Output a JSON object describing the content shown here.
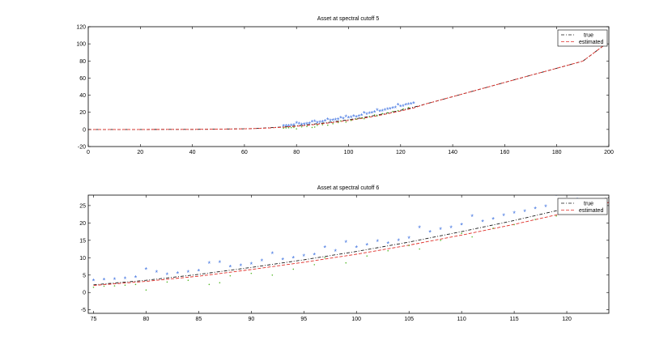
{
  "chart_data": [
    {
      "type": "line",
      "title": "Asset at spectral cutoff 5",
      "xlabel": "",
      "ylabel": "",
      "xlim": [
        0,
        200
      ],
      "ylim": [
        -20,
        120
      ],
      "xticks": [
        0,
        20,
        40,
        60,
        80,
        100,
        120,
        140,
        160,
        180,
        200
      ],
      "yticks": [
        -20,
        0,
        20,
        40,
        60,
        80,
        100,
        120
      ],
      "grid": false,
      "legend_position": "top-right",
      "series": [
        {
          "name": "true",
          "style": "dash-dot",
          "color": "#1a1a1a",
          "x": [
            0,
            20,
            40,
            50,
            60,
            65,
            70,
            75,
            80,
            85,
            90,
            95,
            100,
            105,
            110,
            115,
            120,
            125,
            130,
            140,
            150,
            160,
            170,
            180,
            190,
            198
          ],
          "values": [
            0,
            0,
            0.1,
            0.3,
            0.7,
            1.2,
            2,
            3,
            4.2,
            5.7,
            7.3,
            9.2,
            11.3,
            13.6,
            16.2,
            19.2,
            22.4,
            26,
            30,
            38.3,
            46.6,
            54.9,
            63.2,
            71.5,
            79.8,
            98
          ]
        },
        {
          "name": "estimated",
          "style": "dashed",
          "color": "#e0302a",
          "x": [
            0,
            20,
            40,
            50,
            60,
            65,
            70,
            75,
            80,
            85,
            90,
            95,
            100,
            105,
            110,
            115,
            120,
            125,
            130,
            140,
            150,
            160,
            170,
            180,
            190,
            198
          ],
          "values": [
            0,
            0,
            0.1,
            0.3,
            0.7,
            1.1,
            1.8,
            2.6,
            3.7,
            5.1,
            6.7,
            8.5,
            10.5,
            12.8,
            15.4,
            18.3,
            21.5,
            25,
            30,
            38.3,
            46.6,
            54.9,
            63.2,
            71.5,
            79.8,
            98
          ]
        }
      ],
      "markers": [
        {
          "symbol": "*",
          "color": "#3a6fe0",
          "x": [
            75,
            76,
            77,
            78,
            79,
            80,
            81,
            82,
            83,
            84,
            85,
            86,
            87,
            88,
            89,
            90,
            91,
            92,
            93,
            94,
            95,
            96,
            97,
            98,
            99,
            100,
            101,
            102,
            103,
            104,
            105,
            106,
            107,
            108,
            109,
            110,
            111,
            112,
            113,
            114,
            115,
            116,
            117,
            118,
            119,
            120,
            121,
            122,
            123,
            124,
            125
          ],
          "values": [
            3.3,
            3.5,
            3.6,
            3.8,
            4.2,
            6.5,
            5.7,
            5,
            5.3,
            5.7,
            6,
            8.3,
            8.5,
            7.2,
            7.6,
            8,
            9,
            11,
            9.3,
            9.8,
            10.3,
            10.7,
            12.8,
            11.7,
            14.3,
            12.8,
            13.5,
            14.5,
            14,
            14.8,
            15.5,
            18.5,
            17.2,
            18,
            18.5,
            19.3,
            21.8,
            20.3,
            21,
            22,
            22.7,
            23.2,
            24,
            24.5,
            27.8,
            26,
            26.5,
            28,
            28.5,
            29,
            30
          ]
        },
        {
          "symbol": ".",
          "color": "#55b82a",
          "x": [
            75,
            76,
            77,
            78,
            79,
            80,
            82,
            84,
            86,
            87,
            88,
            90,
            92,
            94,
            96,
            97,
            99,
            101,
            103,
            105,
            106,
            108,
            110,
            111,
            113,
            115,
            117,
            119,
            121,
            123
          ],
          "values": [
            1.5,
            1.8,
            1.9,
            2.1,
            2.3,
            0.7,
            3,
            3.5,
            2.3,
            2.8,
            4.8,
            5.5,
            5,
            6.7,
            8,
            10,
            8.5,
            10.5,
            12,
            13.5,
            12.5,
            15,
            17,
            16,
            18.5,
            19.5,
            21,
            22,
            24,
            25.5
          ]
        }
      ]
    },
    {
      "type": "line",
      "title": "Asset at spectral cutoff 6",
      "xlabel": "",
      "ylabel": "",
      "xlim": [
        74.5,
        124
      ],
      "ylim": [
        -6,
        28
      ],
      "xticks": [
        75,
        80,
        85,
        90,
        95,
        100,
        105,
        110,
        115,
        120
      ],
      "yticks": [
        -5,
        0,
        5,
        10,
        15,
        20,
        25
      ],
      "grid": false,
      "legend_position": "top-right",
      "series": [
        {
          "name": "true",
          "style": "dash-dot",
          "color": "#1a1a1a",
          "x": [
            75,
            80,
            85,
            90,
            95,
            100,
            105,
            110,
            115,
            120,
            124
          ],
          "values": [
            2.2,
            3.5,
            5.2,
            7.2,
            9.4,
            11.8,
            14.5,
            17.5,
            20.7,
            24.2,
            27.3
          ]
        },
        {
          "name": "estimated",
          "style": "dashed",
          "color": "#e0302a",
          "x": [
            75,
            80,
            85,
            90,
            95,
            100,
            105,
            110,
            115,
            120,
            124
          ],
          "values": [
            2,
            3.2,
            4.7,
            6.6,
            8.7,
            11,
            13.6,
            16.5,
            19.6,
            23,
            25.9
          ]
        }
      ],
      "markers": [
        {
          "symbol": "*",
          "color": "#3a6fe0",
          "x": [
            75,
            76,
            77,
            78,
            79,
            80,
            81,
            82,
            83,
            84,
            85,
            86,
            87,
            88,
            89,
            90,
            91,
            92,
            93,
            94,
            95,
            96,
            97,
            98,
            99,
            100,
            101,
            102,
            103,
            104,
            105,
            106,
            107,
            108,
            109,
            110,
            111,
            112,
            113,
            114,
            115,
            116,
            117,
            118,
            119,
            120,
            121,
            122,
            123
          ],
          "values": [
            3.3,
            3.5,
            3.6,
            3.8,
            4.2,
            6.5,
            5.7,
            5,
            5.3,
            5.7,
            6,
            8.3,
            8.5,
            7.2,
            7.6,
            8,
            9,
            11,
            9.3,
            9.8,
            10.3,
            10.7,
            12.8,
            11.7,
            14.3,
            12.8,
            13.5,
            14.5,
            14,
            14.8,
            15.5,
            18.5,
            17.2,
            18,
            18.5,
            19.3,
            21.8,
            20.3,
            21,
            22,
            22.7,
            23.2,
            24,
            24.5,
            27.8,
            26,
            26.5,
            28,
            28.3
          ]
        },
        {
          "symbol": ".",
          "color": "#55b82a",
          "x": [
            75,
            76,
            77,
            78,
            79,
            80,
            82,
            84,
            86,
            87,
            88,
            90,
            92,
            94,
            96,
            97,
            99,
            101,
            103,
            105,
            106,
            108,
            110,
            111,
            113,
            115,
            117,
            119
          ],
          "values": [
            1.5,
            1.8,
            1.9,
            2.1,
            2.3,
            0.7,
            3,
            3.5,
            2.3,
            2.8,
            4.8,
            5.5,
            5,
            6.7,
            8,
            10,
            8.5,
            10.5,
            12,
            13.5,
            12.5,
            15,
            17,
            16,
            18.5,
            19.5,
            21,
            22
          ]
        }
      ]
    }
  ]
}
